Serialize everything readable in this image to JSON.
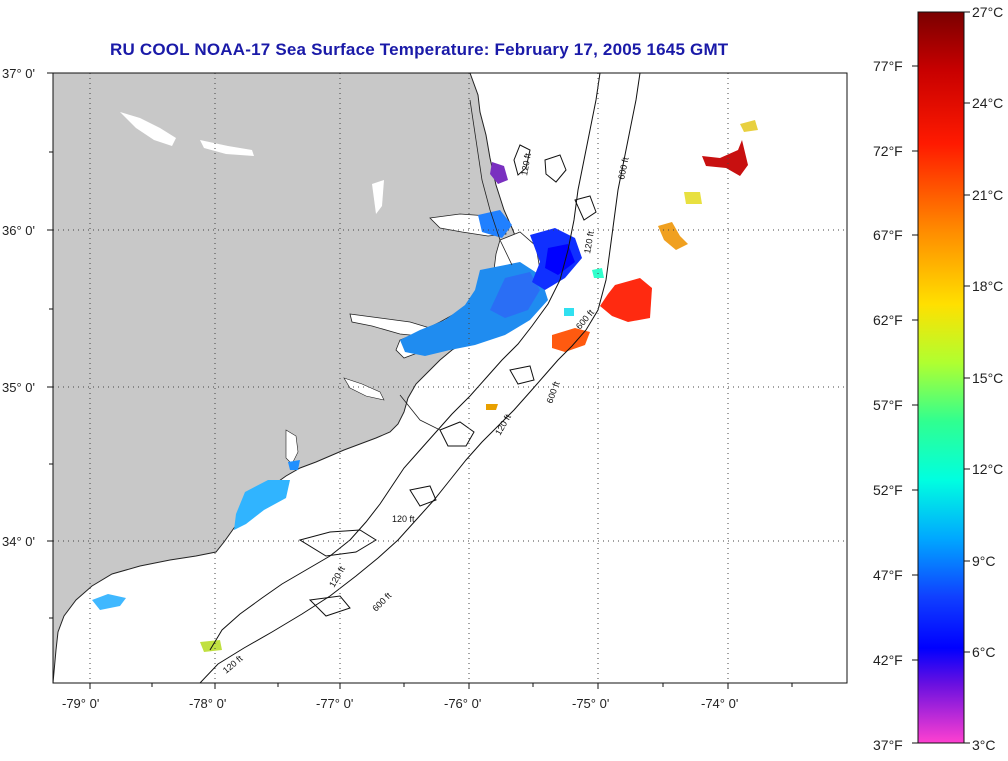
{
  "title": "RU COOL  NOAA-17  Sea Surface Temperature:  February 17, 2005 1645 GMT",
  "map": {
    "lon_ticks": [
      "-79° 0'",
      "-78° 0'",
      "-77° 0'",
      "-76° 0'",
      "-75° 0'",
      "-74° 0'"
    ],
    "lat_ticks": [
      "37° 0'",
      "36° 0'",
      "35° 0'",
      "34° 0'"
    ],
    "contour_labels": [
      "120 ft",
      "600 ft",
      "120 ft",
      "600 ft",
      "120 ft",
      "600 ft",
      "120 ft",
      "600 ft",
      "120 ft",
      "120 ft"
    ],
    "land_color": "#c8c8c8",
    "ocean_color": "#ffffff"
  },
  "colorbar": {
    "celsius_labels": [
      "27°C",
      "24°C",
      "21°C",
      "18°C",
      "15°C",
      "12°C",
      "9°C",
      "6°C",
      "3°C"
    ],
    "fahrenheit_labels": [
      "77°F",
      "72°F",
      "67°F",
      "62°F",
      "57°F",
      "52°F",
      "47°F",
      "42°F",
      "37°F"
    ],
    "colors": [
      "#8b0000",
      "#ff0000",
      "#ff8c00",
      "#ffff00",
      "#00ff80",
      "#00ffff",
      "#0080ff",
      "#0000ff",
      "#8000ff",
      "#ff00ff"
    ]
  }
}
